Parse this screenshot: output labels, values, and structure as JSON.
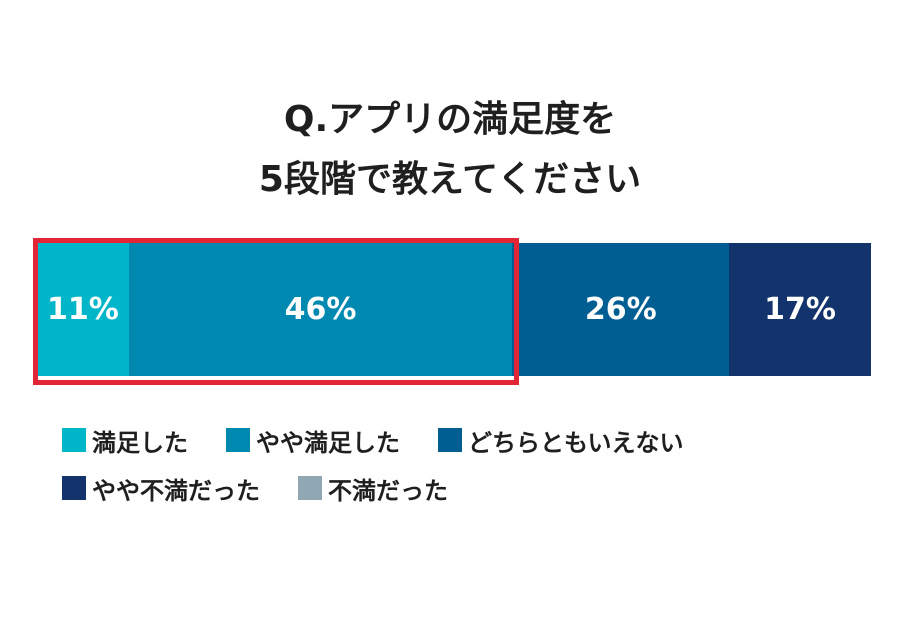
{
  "title_lines": [
    "Q.アプリの満足度を",
    "5段階で教えてください"
  ],
  "chart_data": {
    "type": "bar",
    "orientation": "horizontal-stacked",
    "categories": [
      "満足した",
      "やや満足した",
      "どちらともいえない",
      "やや不満だった",
      "不満だった"
    ],
    "values": [
      11,
      46,
      26,
      17,
      0
    ],
    "value_labels": [
      "11%",
      "46%",
      "26%",
      "17%",
      ""
    ],
    "colors": [
      "#00b6c8",
      "#0089b0",
      "#005e92",
      "#12336b",
      "#8fa8b3"
    ],
    "highlight": {
      "categories": [
        "満足した",
        "やや満足した"
      ],
      "color": "#e32636"
    },
    "legend": {
      "position": "bottom"
    }
  }
}
